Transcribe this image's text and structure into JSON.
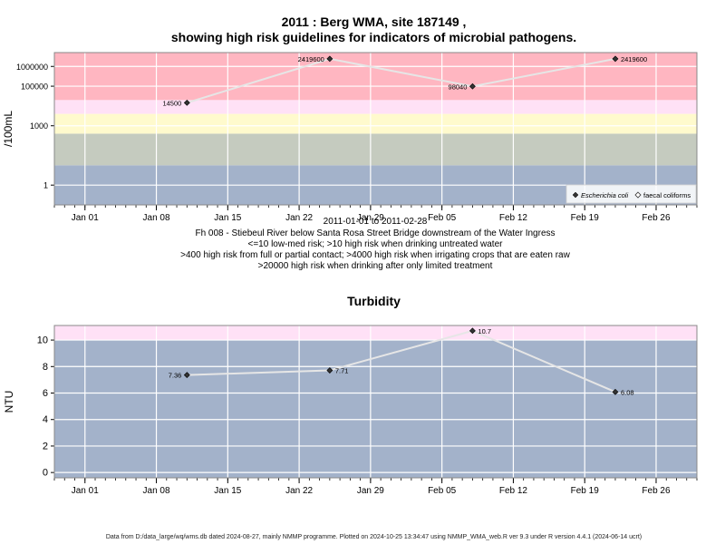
{
  "chart_data": [
    {
      "type": "scatter",
      "title": "2011 : Berg WMA, site 187149 ,",
      "subtitle": "showing high risk guidelines for indicators of microbial pathogens.",
      "ylabel": "/100mL",
      "y_scale": "log",
      "y_ticks": [
        "1",
        "1000",
        "100000",
        "1000000"
      ],
      "x_ticks": [
        "Jan 01",
        "Jan 08",
        "Jan 15",
        "Jan 22",
        "Jan 29",
        "Feb 05",
        "Feb 12",
        "Feb 19",
        "Feb 26"
      ],
      "x_tick_dates": [
        "2011-01-01",
        "2011-01-08",
        "2011-01-15",
        "2011-01-22",
        "2011-01-29",
        "2011-02-05",
        "2011-02-12",
        "2011-02-19",
        "2011-02-26"
      ],
      "xlim": [
        "2010-12-29",
        "2011-03-02"
      ],
      "ylim": [
        0.1,
        5000000
      ],
      "risk_bands": [
        {
          "from": 0.1,
          "to": 10,
          "color": "#a3b2ca"
        },
        {
          "from": 10,
          "to": 400,
          "color": "#c5cbbf"
        },
        {
          "from": 400,
          "to": 4000,
          "color": "#fffacd"
        },
        {
          "from": 4000,
          "to": 20000,
          "color": "#ffe1f6"
        },
        {
          "from": 20000,
          "to": 5000000,
          "color": "#ffb6c1"
        }
      ],
      "series": [
        {
          "name": "Escherichia coli",
          "x": [
            "2011-01-11",
            "2011-01-25",
            "2011-02-08",
            "2011-02-22"
          ],
          "y": [
            14500,
            2419600,
            98040,
            2419600
          ],
          "labels": [
            "14500",
            "2419600",
            "98040",
            "2419600"
          ]
        },
        {
          "name": "faecal coliforms",
          "x": [],
          "y": []
        }
      ],
      "legend_position": "bottom-right",
      "grid": true,
      "notes": [
        "2011-01-01 to 2011-02-28",
        "Fh 008 - Stiebeul River below Santa Rosa Street Bridge downstream of the Water Ingress",
        "<=10 low-med risk; >10 high risk when drinking untreated water",
        ">400 high risk from full or partial contact; >4000 high risk when irrigating crops that are eaten raw",
        ">20000 high risk when drinking after only limited treatment"
      ]
    },
    {
      "type": "line",
      "title": "Turbidity",
      "ylabel": "NTU",
      "y_ticks": [
        0,
        2,
        4,
        6,
        8,
        10
      ],
      "x_ticks": [
        "Jan 01",
        "Jan 08",
        "Jan 15",
        "Jan 22",
        "Jan 29",
        "Feb 05",
        "Feb 12",
        "Feb 19",
        "Feb 26"
      ],
      "x_tick_dates": [
        "2011-01-01",
        "2011-01-08",
        "2011-01-15",
        "2011-01-22",
        "2011-01-29",
        "2011-02-05",
        "2011-02-12",
        "2011-02-19",
        "2011-02-26"
      ],
      "xlim": [
        "2010-12-29",
        "2011-03-02"
      ],
      "ylim": [
        -0.4,
        11.1
      ],
      "risk_bands": [
        {
          "from": -0.4,
          "to": 10,
          "color": "#a3b2ca"
        },
        {
          "from": 10,
          "to": 11.1,
          "color": "#ffe1f6"
        }
      ],
      "series": [
        {
          "name": "",
          "x": [
            "2011-01-11",
            "2011-01-25",
            "2011-02-08",
            "2011-02-22"
          ],
          "y": [
            7.36,
            7.71,
            10.7,
            6.08
          ],
          "labels": [
            "7.36",
            "7.71",
            "10.7",
            "6.08"
          ]
        }
      ],
      "grid": true
    }
  ],
  "footer": "Data from D:/data_large/wq/wms.db dated 2024-08-27, mainly NMMP programme. Plotted on 2024-10-25 13:34:47 using NMMP_WMA_web.R ver 9.3 under R version 4.4.1 (2024-06-14 ucrt)"
}
